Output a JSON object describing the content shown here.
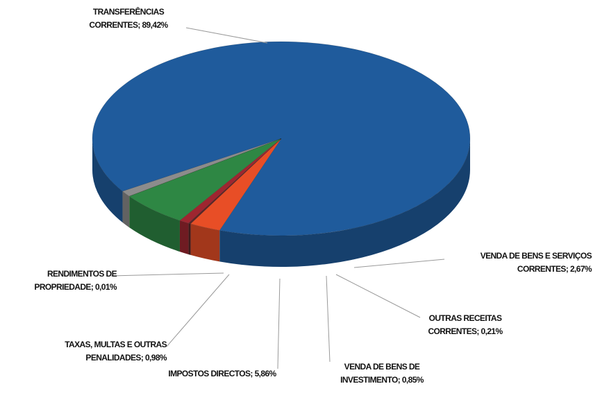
{
  "chart_data": {
    "type": "pie",
    "categories": [
      "TRANSFERÊNCIAS CORRENTES;",
      "VENDA DE BENS E SERVIÇOS CORRENTES;",
      "OUTRAS RECEITAS CORRENTES;",
      "VENDA DE BENS DE INVESTIMENTO;",
      "IMPOSTOS DIRECTOS;",
      "RENDIMENTOS DE PROPRIEDADE;",
      "TAXAS, MULTAS E OUTRAS PENALIDADES;"
    ],
    "values": [
      89.42,
      2.67,
      0.21,
      0.85,
      5.86,
      0.01,
      0.98
    ],
    "value_labels": [
      "89,42%",
      "2,67%",
      "0,21%",
      "0,85%",
      "5,86%",
      "0,01%",
      "0,98%"
    ],
    "colors": [
      "#1f5b9c",
      "#e84e26",
      "#5a2626",
      "#9e2630",
      "#2e8744",
      "#e8d040",
      "#8c8c8c"
    ]
  }
}
